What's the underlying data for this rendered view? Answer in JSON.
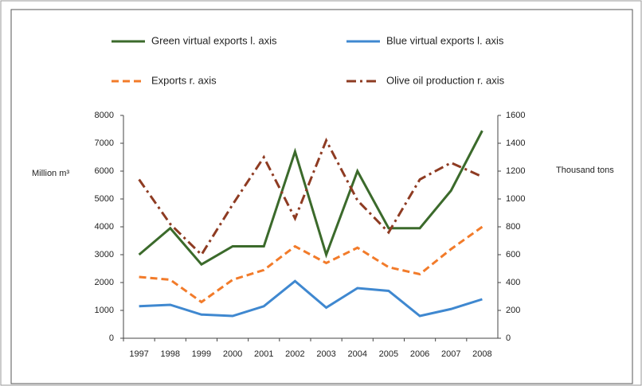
{
  "chart_data": {
    "type": "line",
    "categories": [
      "1997",
      "1998",
      "1999",
      "2000",
      "2001",
      "2002",
      "2003",
      "2004",
      "2005",
      "2006",
      "2007",
      "2008"
    ],
    "ylabel": "Million m³",
    "y2label": "Thousand tons",
    "ylim": [
      0,
      8000
    ],
    "yticks": [
      0,
      1000,
      2000,
      3000,
      4000,
      5000,
      6000,
      7000,
      8000
    ],
    "y2lim": [
      0,
      1600
    ],
    "y2ticks": [
      0,
      200,
      400,
      600,
      800,
      1000,
      1200,
      1400,
      1600
    ],
    "series": [
      {
        "name": "Green virtual exports  l. axis",
        "color": "#3b6a2b",
        "dash": "solid",
        "axis": "y",
        "values": [
          3000,
          3950,
          2650,
          3300,
          3300,
          6700,
          3000,
          6000,
          3950,
          3950,
          5300,
          7450
        ]
      },
      {
        "name": "Blue virtual exports  l. axis",
        "color": "#3f88d0",
        "dash": "solid",
        "axis": "y",
        "values": [
          1150,
          1200,
          850,
          800,
          1150,
          2050,
          1100,
          1800,
          1700,
          800,
          1050,
          1400
        ]
      },
      {
        "name": "Exports  r. axis",
        "color": "#f27b2a",
        "dash": "dashed",
        "axis": "y2",
        "values": [
          440,
          420,
          260,
          420,
          490,
          660,
          540,
          650,
          510,
          460,
          640,
          800
        ]
      },
      {
        "name": "Olive oil production  r. axis",
        "color": "#8e3b22",
        "dash": "dashdot",
        "axis": "y2",
        "values": [
          1140,
          820,
          600,
          960,
          1300,
          860,
          1420,
          990,
          760,
          1140,
          1260,
          1160
        ]
      }
    ]
  }
}
